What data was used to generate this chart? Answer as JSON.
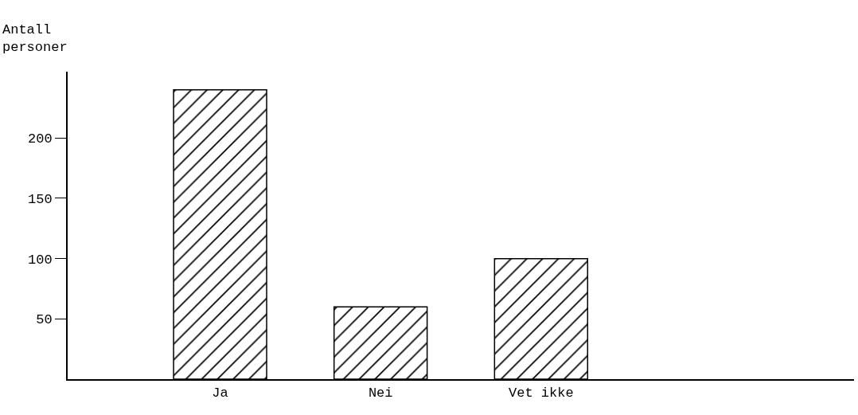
{
  "chart_data": {
    "type": "bar",
    "ylabel": "Antall personer",
    "categories": [
      "Ja",
      "Nei",
      "Vet ikke"
    ],
    "values": [
      240,
      60,
      100
    ],
    "color": "#000000",
    "ylim": [
      0,
      255
    ],
    "yticks": [
      50,
      100,
      150,
      200
    ]
  }
}
